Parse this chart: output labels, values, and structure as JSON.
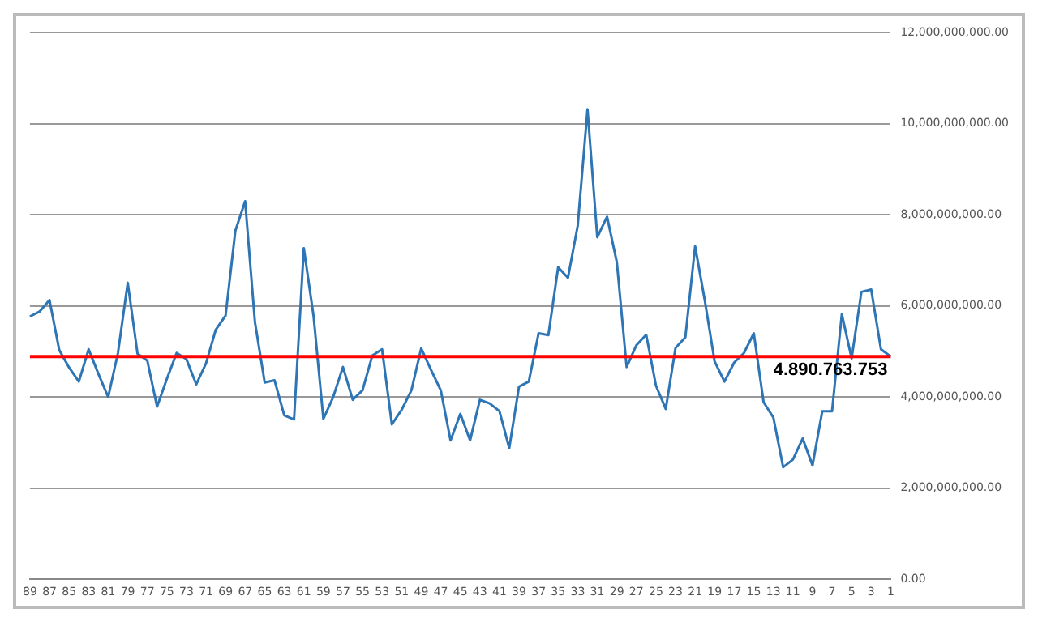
{
  "chart_data": {
    "type": "line",
    "categories": [
      "89",
      null,
      "87",
      null,
      "85",
      null,
      "83",
      null,
      "81",
      null,
      "79",
      null,
      "77",
      null,
      "75",
      null,
      "73",
      null,
      "71",
      null,
      "69",
      null,
      "67",
      null,
      "65",
      null,
      "63",
      null,
      "61",
      null,
      "59",
      null,
      "57",
      null,
      "55",
      null,
      "53",
      null,
      "51",
      null,
      "49",
      null,
      "47",
      null,
      "45",
      null,
      "43",
      null,
      "41",
      null,
      "39",
      null,
      "37",
      null,
      "35",
      null,
      "33",
      null,
      "31",
      null,
      "29",
      null,
      "27",
      null,
      "25",
      null,
      "23",
      null,
      "21",
      null,
      "19",
      null,
      "17",
      null,
      "15",
      null,
      "13",
      null,
      "11",
      null,
      "9",
      null,
      "7",
      null,
      "5",
      null,
      "3",
      null,
      "1"
    ],
    "series": [
      {
        "color": "#2e75b6",
        "values": [
          5770000000,
          5880000000,
          6130000000,
          5030000000,
          4650000000,
          4340000000,
          5050000000,
          4510000000,
          4000000000,
          4970000000,
          6510000000,
          4950000000,
          4800000000,
          3790000000,
          4400000000,
          4970000000,
          4830000000,
          4280000000,
          4740000000,
          5480000000,
          5790000000,
          7650000000,
          8300000000,
          5650000000,
          4320000000,
          4370000000,
          3600000000,
          3510000000,
          7270000000,
          5770000000,
          3520000000,
          4000000000,
          4660000000,
          3940000000,
          4150000000,
          4910000000,
          5050000000,
          3400000000,
          3720000000,
          4150000000,
          5070000000,
          4600000000,
          4150000000,
          3050000000,
          3630000000,
          3050000000,
          3940000000,
          3860000000,
          3690000000,
          2880000000,
          4230000000,
          4340000000,
          5400000000,
          5360000000,
          6850000000,
          6620000000,
          7760000000,
          10320000000,
          7510000000,
          7960000000,
          6960000000,
          4660000000,
          5140000000,
          5370000000,
          4250000000,
          3740000000,
          5080000000,
          5310000000,
          7310000000,
          6110000000,
          4780000000,
          4340000000,
          4760000000,
          4970000000,
          5400000000,
          3890000000,
          3550000000,
          2460000000,
          2630000000,
          3090000000,
          2500000000,
          3690000000,
          3690000000,
          5820000000,
          4850000000,
          6310000000,
          6360000000,
          5050000000,
          4890000000
        ]
      }
    ],
    "ylim": [
      0,
      12000000000
    ],
    "yticks": [
      {
        "value": 0,
        "label": "0.00"
      },
      {
        "value": 2000000000,
        "label": "2,000,000,000.00"
      },
      {
        "value": 4000000000,
        "label": "4,000,000,000.00"
      },
      {
        "value": 6000000000,
        "label": "6,000,000,000.00"
      },
      {
        "value": 8000000000,
        "label": "8,000,000,000.00"
      },
      {
        "value": 10000000000,
        "label": "10,000,000,000.00"
      },
      {
        "value": 12000000000,
        "label": "12,000,000,000.00"
      }
    ],
    "grid": "y",
    "legend": false,
    "marker": "none",
    "line_style": "solid",
    "ref_lines": [
      {
        "axis": "y",
        "value": 4890763753,
        "label": "4.890.763.753",
        "color": "#ff0000"
      }
    ]
  }
}
